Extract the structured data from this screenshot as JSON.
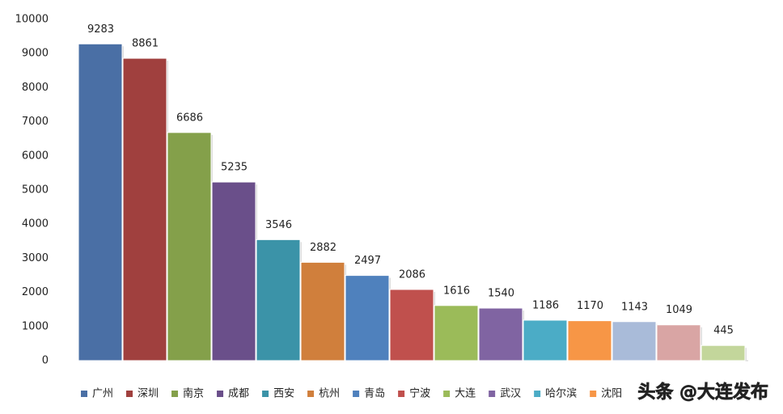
{
  "chart_data": {
    "type": "bar",
    "categories": [
      "广州",
      "深圳",
      "南京",
      "成都",
      "西安",
      "杭州",
      "青岛",
      "宁波",
      "大连",
      "武汉",
      "哈尔滨",
      "沈阳",
      null,
      null,
      null
    ],
    "values": [
      9283,
      8861,
      6686,
      5235,
      3546,
      2882,
      2497,
      2086,
      1616,
      1540,
      1186,
      1170,
      1143,
      1049,
      445
    ],
    "colors": [
      "#4a6fa5",
      "#a0403e",
      "#84a04a",
      "#6a4f8a",
      "#3b93a8",
      "#d07f3c",
      "#4f81bd",
      "#c0504d",
      "#9bbb59",
      "#8064a2",
      "#4bacc6",
      "#f79646",
      "#a9bbd9",
      "#d9a5a4",
      "#c3d69b"
    ],
    "highlight_index": 8,
    "ylim": [
      0,
      10000
    ],
    "yticks": [
      0,
      1000,
      2000,
      3000,
      4000,
      5000,
      6000,
      7000,
      8000,
      9000,
      10000
    ],
    "grid": false,
    "legend": "bottom",
    "watermark": "头条 @大连发布"
  }
}
